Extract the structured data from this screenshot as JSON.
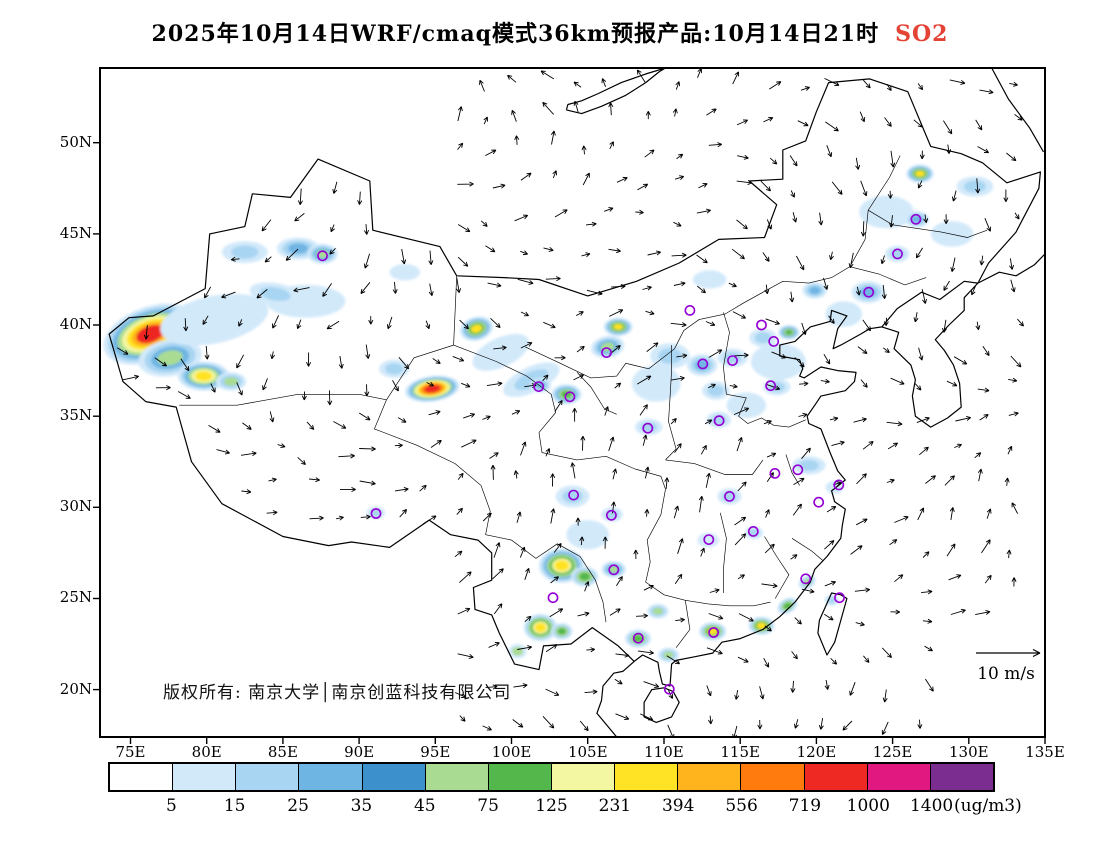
{
  "title": {
    "text": "2025年10月14日WRF/cmaq模式36km预报产品:10月14日21时",
    "pollutant": "SO2",
    "pollutant_color": "#e34234"
  },
  "axes": {
    "lat_ticks": [
      {
        "label": "50N",
        "lat": 50
      },
      {
        "label": "45N",
        "lat": 45
      },
      {
        "label": "40N",
        "lat": 40
      },
      {
        "label": "35N",
        "lat": 35
      },
      {
        "label": "30N",
        "lat": 30
      },
      {
        "label": "25N",
        "lat": 25
      },
      {
        "label": "20N",
        "lat": 20
      }
    ],
    "lon_ticks": [
      {
        "label": "75E",
        "lon": 75
      },
      {
        "label": "80E",
        "lon": 80
      },
      {
        "label": "85E",
        "lon": 85
      },
      {
        "label": "90E",
        "lon": 90
      },
      {
        "label": "95E",
        "lon": 95
      },
      {
        "label": "100E",
        "lon": 100
      },
      {
        "label": "105E",
        "lon": 105
      },
      {
        "label": "110E",
        "lon": 110
      },
      {
        "label": "115E",
        "lon": 115
      },
      {
        "label": "120E",
        "lon": 120
      },
      {
        "label": "125E",
        "lon": 125
      },
      {
        "label": "130E",
        "lon": 130
      },
      {
        "label": "135E",
        "lon": 135
      }
    ]
  },
  "map": {
    "copyright": "版权所有: 南京大学│南京创蓝科技有限公司",
    "wind_ref_label": "10 m/s",
    "city_marker_color": "#9400d3",
    "city_markers": [
      [
        87.6,
        43.8
      ],
      [
        111.7,
        40.8
      ],
      [
        116.4,
        40.0
      ],
      [
        117.2,
        39.1
      ],
      [
        114.5,
        38.05
      ],
      [
        112.55,
        37.87
      ],
      [
        117.0,
        36.67
      ],
      [
        123.43,
        41.8
      ],
      [
        125.32,
        43.9
      ],
      [
        126.53,
        45.8
      ],
      [
        103.83,
        36.06
      ],
      [
        101.78,
        36.62
      ],
      [
        106.23,
        38.49
      ],
      [
        108.94,
        34.34
      ],
      [
        113.62,
        34.75
      ],
      [
        117.28,
        31.86
      ],
      [
        118.78,
        32.06
      ],
      [
        121.47,
        31.23
      ],
      [
        120.15,
        30.28
      ],
      [
        114.3,
        30.6
      ],
      [
        104.07,
        30.67
      ],
      [
        106.55,
        29.56
      ],
      [
        112.94,
        28.23
      ],
      [
        115.86,
        28.68
      ],
      [
        106.71,
        26.57
      ],
      [
        102.72,
        25.04
      ],
      [
        91.11,
        29.66
      ],
      [
        108.32,
        22.82
      ],
      [
        113.26,
        23.13
      ],
      [
        119.3,
        26.08
      ],
      [
        110.35,
        20.02
      ],
      [
        121.52,
        25.04
      ]
    ]
  },
  "colorbar": {
    "labels": [
      "5",
      "15",
      "25",
      "35",
      "45",
      "75",
      "125",
      "231",
      "394",
      "556",
      "719",
      "1000",
      "1400"
    ],
    "unit": "(ug/m3)"
  },
  "chart_data": {
    "type": "heatmap",
    "title": "2025年10月14日WRF/cmaq模式36km预报产品:10月14日21时 SO2",
    "model": "WRF/cmaq",
    "grid_resolution": "36km",
    "forecast_date": "2025年10月14日",
    "valid_time": "10月14日21时",
    "pollutant": "SO2",
    "units": "ug/m3",
    "legend_position": "bottom",
    "wind_reference_speed": "10 m/s",
    "lon_range": [
      73,
      135
    ],
    "lat_range": [
      17.4,
      54.1
    ],
    "levels": [
      5,
      15,
      25,
      35,
      45,
      75,
      125,
      231,
      394,
      556,
      719,
      1000,
      1400
    ],
    "colors": [
      "#ffffff",
      "#d2e9fa",
      "#a8d5f2",
      "#6fb5e3",
      "#3c90cc",
      "#a9dc92",
      "#53b74c",
      "#f4f7a1",
      "#ffe324",
      "#ffb31c",
      "#ff7b0e",
      "#ee2822",
      "#e0187f",
      "#7b2d90"
    ],
    "hotspot_fields": [
      "lon",
      "lat",
      "rx_deg",
      "ry_deg",
      "rot_deg",
      "level_color_indices"
    ],
    "hotspots": [
      [
        76.3,
        39.5,
        3.2,
        1.5,
        -20,
        [
          1,
          2,
          3,
          5,
          7,
          8,
          9,
          11
        ]
      ],
      [
        77.6,
        38.2,
        2.1,
        1.0,
        -10,
        [
          1,
          2,
          3,
          5
        ]
      ],
      [
        79.8,
        37.2,
        1.7,
        0.8,
        0,
        [
          1,
          2,
          3,
          5,
          7,
          8
        ]
      ],
      [
        81.6,
        36.9,
        1.0,
        0.5,
        0,
        [
          1,
          2,
          5
        ]
      ],
      [
        80.5,
        40.3,
        3.6,
        1.3,
        -12,
        [
          1
        ]
      ],
      [
        86.5,
        41.3,
        2.6,
        0.9,
        0,
        [
          1
        ]
      ],
      [
        82.5,
        44.0,
        1.5,
        0.6,
        0,
        [
          1,
          2
        ]
      ],
      [
        86.0,
        44.2,
        1.4,
        0.6,
        0,
        [
          1,
          2,
          3
        ]
      ],
      [
        87.6,
        43.9,
        1.0,
        0.55,
        0,
        [
          1,
          2,
          3,
          5
        ]
      ],
      [
        84.5,
        41.7,
        1.7,
        0.6,
        10,
        [
          1,
          2
        ]
      ],
      [
        93.0,
        42.9,
        1.0,
        0.45,
        0,
        [
          1
        ]
      ],
      [
        97.7,
        39.8,
        1.1,
        0.65,
        -15,
        [
          1,
          2,
          3,
          5,
          6,
          8
        ]
      ],
      [
        94.8,
        36.5,
        1.8,
        0.7,
        -8,
        [
          1,
          2,
          3,
          5,
          7,
          8,
          9,
          10,
          11
        ]
      ],
      [
        92.3,
        37.6,
        1.0,
        0.5,
        0,
        [
          1,
          2
        ]
      ],
      [
        99.3,
        38.5,
        2.0,
        0.8,
        -25,
        [
          1
        ]
      ],
      [
        101.3,
        37.0,
        2.0,
        0.7,
        -25,
        [
          1,
          2
        ]
      ],
      [
        103.6,
        36.2,
        1.0,
        0.55,
        0,
        [
          1,
          2,
          3,
          5,
          6
        ]
      ],
      [
        101.9,
        36.7,
        0.7,
        0.4,
        0,
        [
          1,
          2,
          3
        ]
      ],
      [
        104.0,
        30.6,
        1.1,
        0.6,
        0,
        [
          1,
          2
        ]
      ],
      [
        106.3,
        38.8,
        1.1,
        0.6,
        -10,
        [
          1,
          2,
          3,
          5
        ]
      ],
      [
        107.0,
        39.9,
        0.95,
        0.5,
        0,
        [
          1,
          2,
          3,
          5,
          6,
          8
        ]
      ],
      [
        109.5,
        36.8,
        1.6,
        1.0,
        0,
        [
          1
        ]
      ],
      [
        110.4,
        38.3,
        1.3,
        0.7,
        0,
        [
          1,
          2
        ]
      ],
      [
        112.5,
        37.8,
        1.0,
        0.6,
        0,
        [
          1,
          2,
          3
        ]
      ],
      [
        113.4,
        36.4,
        0.9,
        0.5,
        0,
        [
          1,
          2
        ]
      ],
      [
        114.5,
        38.2,
        1.0,
        0.5,
        0,
        [
          1,
          2
        ]
      ],
      [
        117.5,
        38.0,
        1.8,
        1.0,
        0,
        [
          1
        ]
      ],
      [
        116.5,
        39.3,
        0.9,
        0.5,
        0,
        [
          1,
          2
        ]
      ],
      [
        118.2,
        39.6,
        0.7,
        0.4,
        0,
        [
          1,
          2,
          3,
          5,
          6
        ]
      ],
      [
        115.4,
        35.6,
        1.3,
        0.7,
        0,
        [
          1
        ]
      ],
      [
        117.4,
        36.6,
        0.9,
        0.45,
        0,
        [
          1,
          2
        ]
      ],
      [
        113.6,
        34.8,
        0.8,
        0.45,
        0,
        [
          1,
          2
        ]
      ],
      [
        109.0,
        34.4,
        0.9,
        0.45,
        0,
        [
          1,
          2
        ]
      ],
      [
        114.3,
        30.6,
        0.8,
        0.45,
        0,
        [
          1,
          2
        ]
      ],
      [
        119.5,
        32.3,
        1.1,
        0.5,
        0,
        [
          1,
          2
        ]
      ],
      [
        121.2,
        31.1,
        0.6,
        0.35,
        0,
        [
          1
        ]
      ],
      [
        113.0,
        42.5,
        1.1,
        0.5,
        0,
        [
          1
        ]
      ],
      [
        119.9,
        41.9,
        0.8,
        0.45,
        0,
        [
          1,
          2,
          3
        ]
      ],
      [
        121.8,
        40.6,
        1.2,
        0.7,
        0,
        [
          1
        ]
      ],
      [
        123.4,
        41.8,
        1.1,
        0.6,
        0,
        [
          1,
          2,
          3
        ]
      ],
      [
        125.3,
        43.9,
        0.8,
        0.45,
        0,
        [
          1,
          2
        ]
      ],
      [
        124.6,
        46.2,
        1.8,
        0.9,
        0,
        [
          1
        ]
      ],
      [
        126.6,
        45.8,
        0.8,
        0.45,
        0,
        [
          1,
          2,
          3
        ]
      ],
      [
        126.8,
        48.3,
        0.9,
        0.5,
        0,
        [
          1,
          2,
          3,
          5,
          6,
          8
        ]
      ],
      [
        130.4,
        47.6,
        1.2,
        0.55,
        0,
        [
          1,
          2
        ]
      ],
      [
        128.9,
        45.0,
        1.4,
        0.7,
        0,
        [
          1
        ]
      ],
      [
        106.6,
        29.6,
        0.7,
        0.4,
        0,
        [
          1,
          2
        ]
      ],
      [
        105.0,
        28.5,
        1.4,
        0.8,
        0,
        [
          1
        ]
      ],
      [
        103.3,
        26.8,
        1.5,
        0.95,
        0,
        [
          1,
          2,
          3,
          5,
          6,
          7,
          8
        ]
      ],
      [
        104.8,
        26.2,
        0.9,
        0.55,
        0,
        [
          1,
          2,
          5,
          6
        ]
      ],
      [
        106.7,
        26.6,
        0.8,
        0.45,
        0,
        [
          1,
          2,
          3,
          5
        ]
      ],
      [
        101.9,
        23.4,
        1.1,
        0.75,
        0,
        [
          1,
          2,
          5,
          6,
          7,
          8
        ]
      ],
      [
        103.3,
        23.2,
        0.7,
        0.45,
        0,
        [
          1,
          2,
          5,
          6
        ]
      ],
      [
        100.4,
        22.1,
        0.6,
        0.4,
        0,
        [
          1,
          5
        ]
      ],
      [
        108.3,
        22.8,
        0.85,
        0.5,
        0,
        [
          1,
          2,
          5,
          6
        ]
      ],
      [
        109.6,
        24.3,
        0.7,
        0.4,
        0,
        [
          1,
          2,
          5
        ]
      ],
      [
        110.3,
        21.9,
        0.7,
        0.4,
        0,
        [
          1,
          2,
          5
        ]
      ],
      [
        113.2,
        23.2,
        0.9,
        0.5,
        0,
        [
          1,
          2,
          5,
          6,
          8
        ]
      ],
      [
        116.4,
        23.5,
        0.85,
        0.5,
        0,
        [
          1,
          2,
          5,
          6,
          8
        ]
      ],
      [
        118.1,
        24.6,
        0.7,
        0.4,
        -30,
        [
          1,
          2,
          5,
          6
        ]
      ],
      [
        119.4,
        25.9,
        0.6,
        0.35,
        -30,
        [
          1,
          2,
          5
        ]
      ],
      [
        115.9,
        28.6,
        0.6,
        0.35,
        0,
        [
          1,
          2
        ]
      ],
      [
        112.9,
        28.2,
        0.7,
        0.4,
        0,
        [
          1
        ]
      ],
      [
        91.1,
        29.7,
        0.6,
        0.35,
        0,
        [
          1,
          2
        ]
      ],
      [
        121.0,
        24.9,
        0.45,
        0.3,
        0,
        [
          1,
          2
        ]
      ]
    ]
  }
}
